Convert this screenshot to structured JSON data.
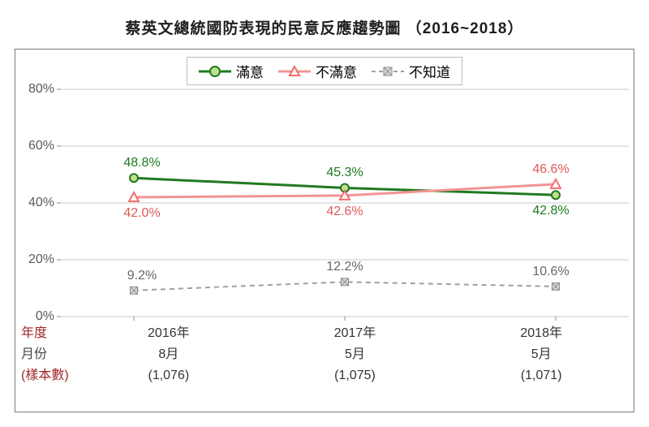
{
  "title": "蔡英文總統國防表現的民意反應趨勢圖 （2016~2018）",
  "chart": {
    "type": "line",
    "ylim": [
      0,
      80
    ],
    "ytick_step": 20,
    "ytick_suffix": "%",
    "grid_color": "#c9c9c9",
    "frame_color": "#7a7a7a",
    "background": "#ffffff",
    "tick_font_color": "#5a5a5a",
    "tick_fontsize": 16,
    "x_categories": [
      "2016年",
      "2017年",
      "2018年"
    ],
    "axis_rows": [
      {
        "name": "年度",
        "header": "年度",
        "color": "#a02828",
        "values": [
          "2016年",
          "2017年",
          "2018年"
        ]
      },
      {
        "name": "月份",
        "header": "月份",
        "color": "#444444",
        "values": [
          "8月",
          "5月",
          "5月"
        ]
      },
      {
        "name": "樣本數",
        "header": "(樣本數)",
        "color": "#a02828",
        "values": [
          "(1,076)",
          "(1,075)",
          "(1,071)"
        ]
      }
    ],
    "series": [
      {
        "name": "滿意",
        "label": "滿意",
        "color": "#1f7a1f",
        "line_width": 3,
        "marker": "circle",
        "marker_fill": "#c1e08d",
        "marker_stroke": "#1f7a1f",
        "marker_size": 10,
        "dash": "none",
        "values": [
          48.8,
          45.3,
          42.8
        ],
        "value_labels": [
          "48.8%",
          "45.3%",
          "42.8%"
        ],
        "label_pos": [
          "above",
          "above",
          "below"
        ],
        "label_color": "#1f7a1f"
      },
      {
        "name": "不滿意",
        "label": "不滿意",
        "color": "#f29494",
        "line_width": 3,
        "marker": "triangle",
        "marker_fill": "#ffffff",
        "marker_stroke": "#f26d6d",
        "marker_size": 10,
        "dash": "none",
        "values": [
          42.0,
          42.6,
          46.6
        ],
        "value_labels": [
          "42.0%",
          "42.6%",
          "46.6%"
        ],
        "label_pos": [
          "below",
          "below",
          "above"
        ],
        "label_color": "#e05858"
      },
      {
        "name": "不知道",
        "label": "不知道",
        "color": "#a0a0a0",
        "line_width": 2,
        "marker": "x-square",
        "marker_fill": "#d9d9d9",
        "marker_stroke": "#8a8a8a",
        "marker_size": 9,
        "dash": "6,5",
        "values": [
          9.2,
          12.2,
          10.6
        ],
        "value_labels": [
          "9.2%",
          "12.2%",
          "10.6%"
        ],
        "label_pos": [
          "above",
          "above",
          "above"
        ],
        "label_color": "#666666"
      }
    ],
    "title_fontsize": 19,
    "title_font_weight": "bold",
    "title_color": "#1f1f1f"
  },
  "legend": {
    "border_color": "#bdbdbd",
    "fontsize": 17,
    "items": [
      "滿意",
      "不滿意",
      "不知道"
    ]
  }
}
